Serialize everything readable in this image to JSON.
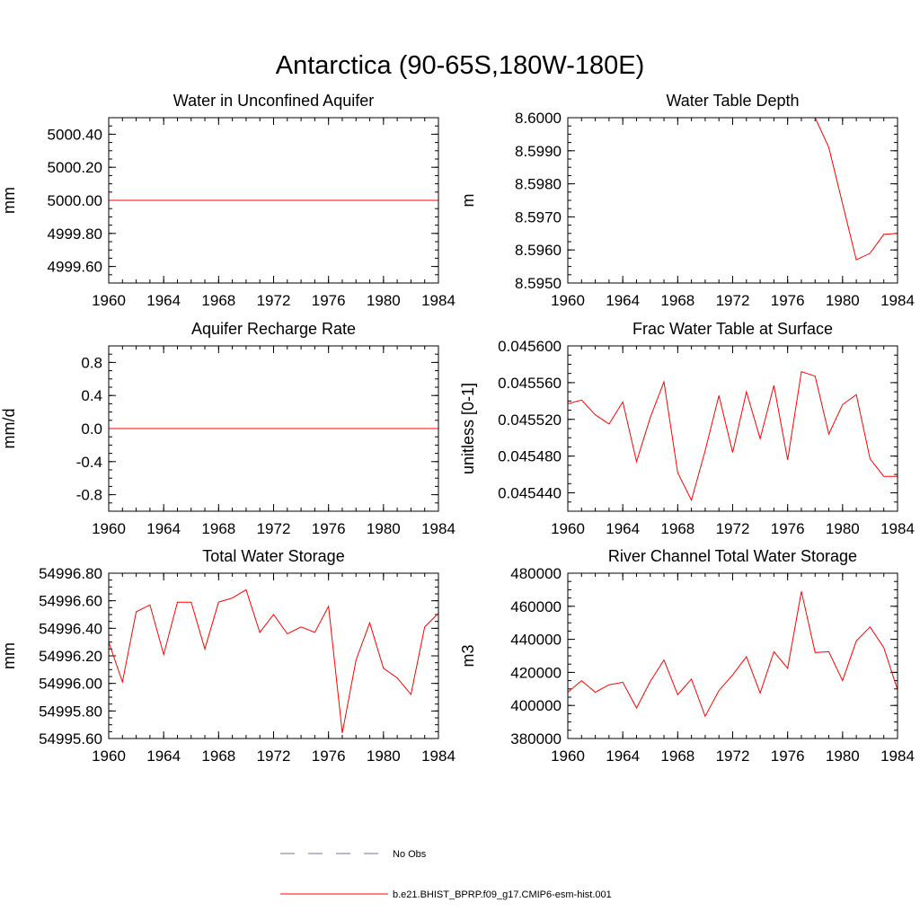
{
  "figure": {
    "title": "Antarctica (90-65S,180W-180E)",
    "legend": [
      {
        "label": "No Obs",
        "color": "#6f72b8",
        "style": "dashed"
      },
      {
        "label": "b.e21.BHIST_BPRP.f09_g17.CMIP6-esm-hist.001",
        "color": "#ff0000",
        "style": "solid"
      }
    ]
  },
  "chart_data": [
    {
      "type": "line",
      "title": "Water in Unconfined Aquifer",
      "xlabel": "",
      "ylabel": "mm",
      "xlim": [
        1960,
        1984
      ],
      "ylim": [
        4999.5,
        5000.5
      ],
      "xticks": [
        1960,
        1964,
        1968,
        1972,
        1976,
        1980,
        1984
      ],
      "yticks": [
        4999.6,
        4999.8,
        5000.0,
        5000.2,
        5000.4
      ],
      "ytick_labels": [
        "4999.60",
        "4999.80",
        "5000.00",
        "5000.20",
        "5000.40"
      ],
      "x": [
        1960,
        1984
      ],
      "y": [
        5000.0,
        5000.0
      ],
      "color": "#ff0000"
    },
    {
      "type": "line",
      "title": "Water Table Depth",
      "xlabel": "",
      "ylabel": "m",
      "xlim": [
        1960,
        1984
      ],
      "ylim": [
        8.595,
        8.6
      ],
      "xticks": [
        1960,
        1964,
        1968,
        1972,
        1976,
        1980,
        1984
      ],
      "yticks": [
        8.595,
        8.596,
        8.597,
        8.598,
        8.599,
        8.6
      ],
      "ytick_labels": [
        "8.5950",
        "8.5960",
        "8.5970",
        "8.5980",
        "8.5990",
        "8.6000"
      ],
      "x": [
        1960,
        1961,
        1962,
        1963,
        1964,
        1965,
        1966,
        1967,
        1968,
        1969,
        1970,
        1971,
        1972,
        1973,
        1974,
        1975,
        1976,
        1977,
        1978,
        1979,
        1980,
        1981,
        1982,
        1983,
        1984
      ],
      "y": [
        8.6,
        8.6,
        8.6,
        8.6,
        8.6,
        8.6,
        8.6,
        8.6,
        8.6,
        8.6,
        8.6,
        8.6,
        8.6,
        8.6,
        8.6,
        8.6,
        8.6,
        8.6,
        8.6,
        8.5991,
        8.5974,
        8.5957,
        8.5959,
        8.59647,
        8.5965
      ],
      "color": "#ff0000"
    },
    {
      "type": "line",
      "title": "Aquifer Recharge Rate",
      "xlabel": "",
      "ylabel": "mm/d",
      "xlim": [
        1960,
        1984
      ],
      "ylim": [
        -1.0,
        1.0
      ],
      "xticks": [
        1960,
        1964,
        1968,
        1972,
        1976,
        1980,
        1984
      ],
      "yticks": [
        -0.8,
        -0.4,
        0.0,
        0.4,
        0.8
      ],
      "ytick_labels": [
        "-0.8",
        "-0.4",
        "0.0",
        "0.4",
        "0.8"
      ],
      "x": [
        1960,
        1984
      ],
      "y": [
        0.0,
        0.0
      ],
      "color": "#ff0000"
    },
    {
      "type": "line",
      "title": "Frac Water Table at Surface",
      "xlabel": "",
      "ylabel": "unitless [0-1]",
      "xlim": [
        1960,
        1984
      ],
      "ylim": [
        0.04542,
        0.0456
      ],
      "xticks": [
        1960,
        1964,
        1968,
        1972,
        1976,
        1980,
        1984
      ],
      "yticks": [
        0.04544,
        0.04548,
        0.04552,
        0.04556,
        0.0456
      ],
      "ytick_labels": [
        "0.045440",
        "0.045480",
        "0.045520",
        "0.045560",
        "0.045600"
      ],
      "x": [
        1960,
        1961,
        1962,
        1963,
        1964,
        1965,
        1966,
        1967,
        1968,
        1969,
        1970,
        1971,
        1972,
        1973,
        1974,
        1975,
        1976,
        1977,
        1978,
        1979,
        1980,
        1981,
        1982,
        1983,
        1984
      ],
      "y": [
        0.045537,
        0.045541,
        0.045525,
        0.045515,
        0.045539,
        0.045474,
        0.045522,
        0.045561,
        0.045462,
        0.045432,
        0.045486,
        0.045546,
        0.045484,
        0.04555,
        0.045499,
        0.045557,
        0.045476,
        0.045572,
        0.045567,
        0.045504,
        0.045536,
        0.045547,
        0.045477,
        0.045458,
        0.045458
      ],
      "color": "#ff0000"
    },
    {
      "type": "line",
      "title": "Total Water Storage",
      "xlabel": "",
      "ylabel": "mm",
      "xlim": [
        1960,
        1984
      ],
      "ylim": [
        54995.6,
        54996.8
      ],
      "xticks": [
        1960,
        1964,
        1968,
        1972,
        1976,
        1980,
        1984
      ],
      "yticks": [
        54995.6,
        54995.8,
        54996.0,
        54996.2,
        54996.4,
        54996.6,
        54996.8
      ],
      "ytick_labels": [
        "54995.60",
        "54995.80",
        "54996.00",
        "54996.20",
        "54996.40",
        "54996.60",
        "54996.80"
      ],
      "x": [
        1960,
        1961,
        1962,
        1963,
        1964,
        1965,
        1966,
        1967,
        1968,
        1969,
        1970,
        1971,
        1972,
        1973,
        1974,
        1975,
        1976,
        1977,
        1978,
        1979,
        1980,
        1981,
        1982,
        1983,
        1984
      ],
      "y": [
        54996.3,
        54996.01,
        54996.52,
        54996.57,
        54996.21,
        54996.59,
        54996.59,
        54996.25,
        54996.59,
        54996.62,
        54996.68,
        54996.37,
        54996.5,
        54996.36,
        54996.41,
        54996.37,
        54996.56,
        54995.64,
        54996.17,
        54996.44,
        54996.11,
        54996.04,
        54995.92,
        54996.41,
        54996.51
      ],
      "color": "#ff0000"
    },
    {
      "type": "line",
      "title": "River Channel Total Water Storage",
      "xlabel": "",
      "ylabel": "m3",
      "xlim": [
        1960,
        1984
      ],
      "ylim": [
        380000,
        480000
      ],
      "xticks": [
        1960,
        1964,
        1968,
        1972,
        1976,
        1980,
        1984
      ],
      "yticks": [
        380000,
        400000,
        420000,
        440000,
        460000,
        480000
      ],
      "ytick_labels": [
        "380000",
        "400000",
        "420000",
        "440000",
        "460000",
        "480000"
      ],
      "x": [
        1960,
        1961,
        1962,
        1963,
        1964,
        1965,
        1966,
        1967,
        1968,
        1969,
        1970,
        1971,
        1972,
        1973,
        1974,
        1975,
        1976,
        1977,
        1978,
        1979,
        1980,
        1981,
        1982,
        1983,
        1984
      ],
      "y": [
        408000,
        415000,
        408000,
        412500,
        414000,
        398500,
        414500,
        427500,
        406500,
        416000,
        393500,
        409000,
        418500,
        429500,
        407500,
        432500,
        422500,
        469000,
        432000,
        432500,
        415000,
        439000,
        447500,
        435000,
        409500
      ],
      "color": "#ff0000"
    }
  ]
}
